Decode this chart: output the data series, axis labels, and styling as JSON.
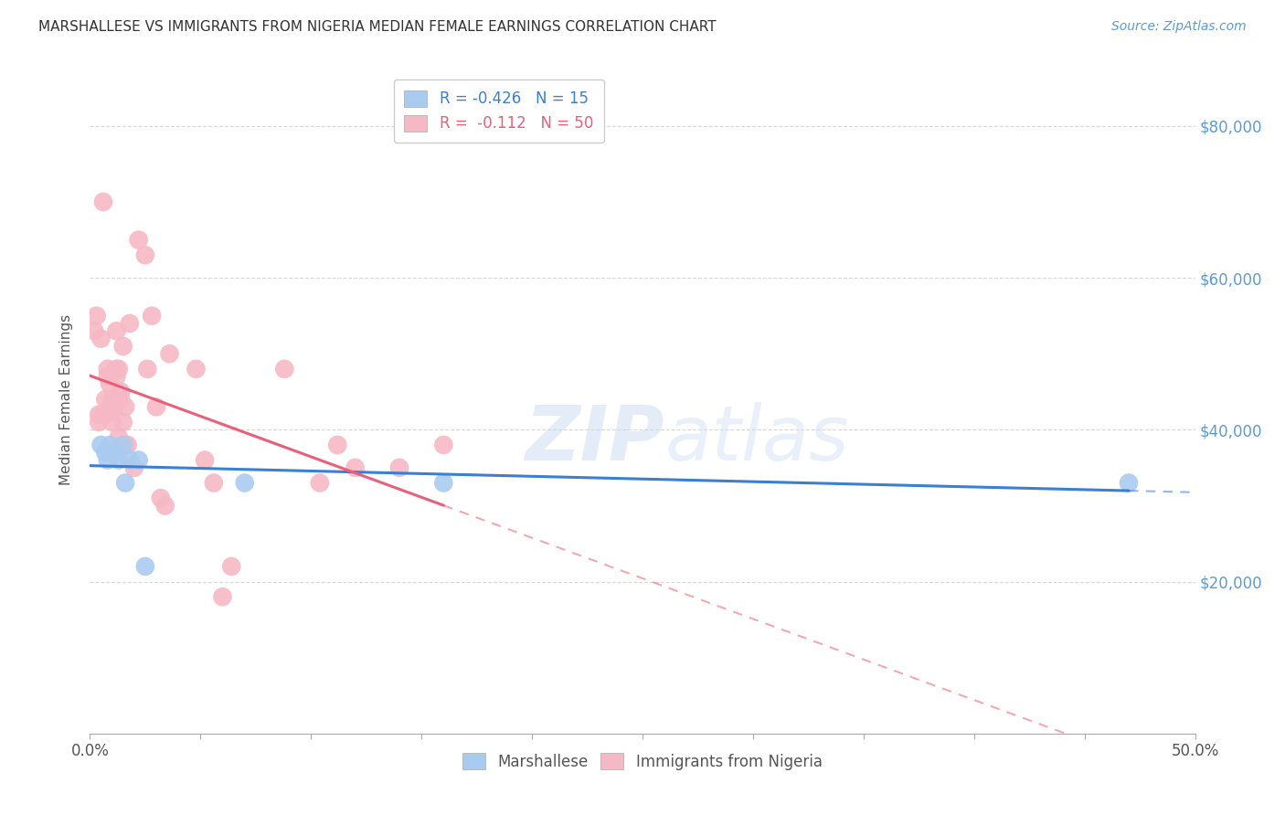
{
  "title": "MARSHALLESE VS IMMIGRANTS FROM NIGERIA MEDIAN FEMALE EARNINGS CORRELATION CHART",
  "source": "Source: ZipAtlas.com",
  "ylabel": "Median Female Earnings",
  "y_ticks": [
    20000,
    40000,
    60000,
    80000
  ],
  "y_tick_labels": [
    "$20,000",
    "$40,000",
    "$60,000",
    "$80,000"
  ],
  "xlim": [
    0.0,
    0.5
  ],
  "ylim": [
    0,
    88000
  ],
  "legend_entries": [
    {
      "label": "R = -0.426   N = 15",
      "color": "#7db3e8"
    },
    {
      "label": "R =  -0.112   N = 50",
      "color": "#f4a0b0"
    }
  ],
  "legend_labels_bottom": [
    "Marshallese",
    "Immigrants from Nigeria"
  ],
  "marshallese_x": [
    0.005,
    0.007,
    0.008,
    0.009,
    0.01,
    0.012,
    0.013,
    0.015,
    0.016,
    0.018,
    0.022,
    0.025,
    0.07,
    0.16,
    0.47
  ],
  "marshallese_y": [
    38000,
    37000,
    36000,
    38000,
    37000,
    37000,
    36000,
    38000,
    33000,
    36000,
    36000,
    22000,
    33000,
    33000,
    33000
  ],
  "nigeria_x": [
    0.002,
    0.003,
    0.004,
    0.004,
    0.005,
    0.006,
    0.006,
    0.007,
    0.007,
    0.008,
    0.008,
    0.009,
    0.009,
    0.01,
    0.01,
    0.011,
    0.011,
    0.012,
    0.012,
    0.012,
    0.013,
    0.013,
    0.014,
    0.014,
    0.015,
    0.015,
    0.016,
    0.016,
    0.017,
    0.018,
    0.02,
    0.022,
    0.025,
    0.026,
    0.028,
    0.03,
    0.032,
    0.034,
    0.036,
    0.048,
    0.052,
    0.056,
    0.06,
    0.064,
    0.088,
    0.104,
    0.112,
    0.12,
    0.14,
    0.16
  ],
  "nigeria_y": [
    53000,
    55000,
    42000,
    41000,
    52000,
    70000,
    42000,
    44000,
    42000,
    48000,
    47000,
    46000,
    43000,
    44000,
    41000,
    43000,
    43000,
    47000,
    48000,
    53000,
    48000,
    39000,
    44000,
    45000,
    51000,
    41000,
    43000,
    38000,
    38000,
    54000,
    35000,
    65000,
    63000,
    48000,
    55000,
    43000,
    31000,
    30000,
    50000,
    48000,
    36000,
    33000,
    18000,
    22000,
    48000,
    33000,
    38000,
    35000,
    35000,
    38000
  ],
  "marshallese_color": "#aacbf0",
  "nigeria_color": "#f5b8c4",
  "marshallese_line_color": "#3a7fd4",
  "nigeria_line_color": "#e8607a",
  "watermark_zip": "ZIP",
  "watermark_atlas": "atlas",
  "background_color": "#ffffff",
  "grid_color": "#d8d8d8"
}
